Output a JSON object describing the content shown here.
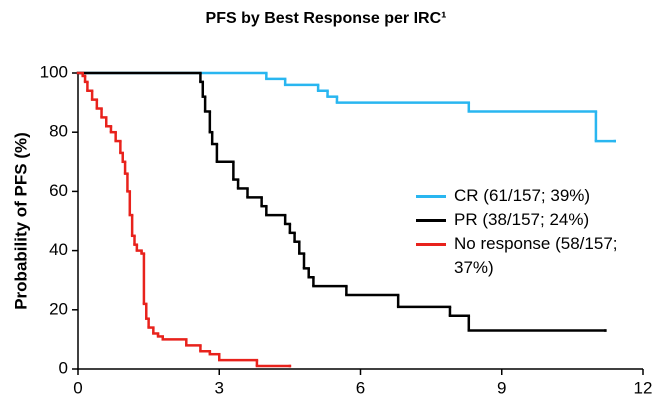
{
  "chart_data": {
    "type": "step",
    "title": "PFS by Best Response per IRC¹",
    "y_label": "Probability of PFS (%)",
    "xlim": [
      0,
      12
    ],
    "xticks": [
      0,
      3,
      6,
      9,
      12
    ],
    "ylim": [
      0,
      100
    ],
    "yticks": [
      0,
      20,
      40,
      60,
      80,
      100
    ],
    "grid": false,
    "legend": "right",
    "series": [
      {
        "name": "CR (61/157; 39%)",
        "color": "#29b6f0",
        "x": [
          0,
          4.0,
          4.4,
          5.1,
          5.3,
          5.5,
          8.3,
          11.0,
          11.4
        ],
        "values": [
          100,
          98,
          96,
          94,
          92,
          90,
          87,
          77,
          77
        ]
      },
      {
        "name": "PR (38/157; 24%)",
        "color": "#000000",
        "x": [
          0,
          2.6,
          2.65,
          2.7,
          2.8,
          2.85,
          2.95,
          3.3,
          3.4,
          3.6,
          3.9,
          4.0,
          4.4,
          4.5,
          4.6,
          4.7,
          4.8,
          4.9,
          5.0,
          5.7,
          6.8,
          7.9,
          8.3,
          11.2
        ],
        "values": [
          100,
          97,
          92,
          87,
          80,
          76,
          70,
          64,
          61,
          58,
          55,
          52,
          49,
          46,
          43,
          39,
          34,
          31,
          28,
          25,
          21,
          18,
          13,
          13
        ]
      },
      {
        "name": "No response (58/157; 37%)",
        "color": "#e8221c",
        "x": [
          0,
          0.1,
          0.15,
          0.2,
          0.3,
          0.4,
          0.5,
          0.6,
          0.7,
          0.8,
          0.9,
          0.95,
          1.0,
          1.05,
          1.1,
          1.15,
          1.2,
          1.25,
          1.35,
          1.4,
          1.45,
          1.5,
          1.6,
          1.7,
          1.8,
          2.3,
          2.6,
          2.8,
          3.0,
          3.8,
          4.5
        ],
        "values": [
          100,
          99,
          97,
          94,
          91,
          88,
          85,
          82,
          80,
          77,
          73,
          70,
          66,
          60,
          52,
          45,
          42,
          40,
          39,
          22,
          17,
          14,
          12,
          11,
          10,
          8,
          6,
          5,
          3,
          1,
          1
        ]
      }
    ]
  }
}
